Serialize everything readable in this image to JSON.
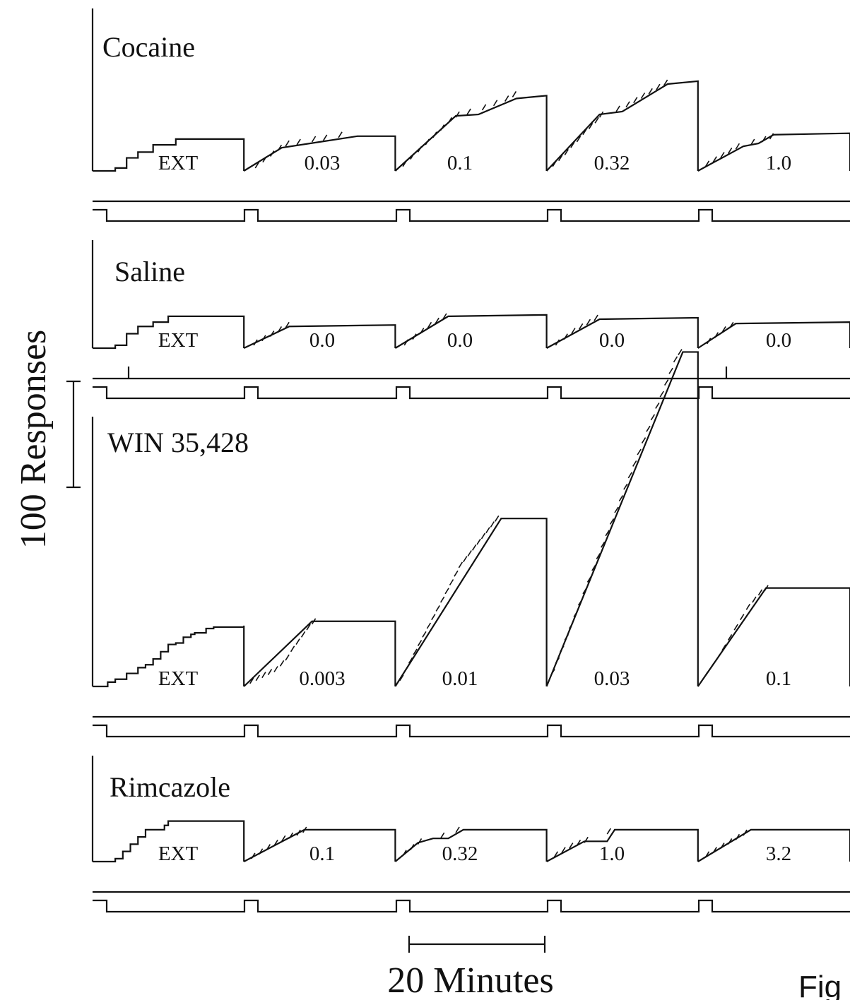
{
  "figure_label": "Fig",
  "scale_bars": {
    "y": "100 Responses",
    "x": "20 Minutes"
  },
  "panels": [
    {
      "title": "Cocaine",
      "segments": [
        {
          "label": "EXT",
          "start": 0,
          "steps": [
            [
              6,
              2
            ],
            [
              9,
              9
            ],
            [
              12,
              13
            ],
            [
              16,
              18
            ],
            [
              22,
              22
            ],
            [
              40,
              22
            ]
          ],
          "ticks": []
        },
        {
          "label": "0.03",
          "start": 0,
          "steps": [
            [
              5,
              16
            ],
            [
              10,
              20
            ],
            [
              15,
              24
            ],
            [
              20,
              24
            ]
          ],
          "ticks": [
            [
              1.5,
              2
            ],
            [
              2.5,
              6
            ],
            [
              3.5,
              10
            ],
            [
              4.5,
              14
            ],
            [
              5.5,
              17
            ],
            [
              7.0,
              18
            ],
            [
              9.0,
              20
            ],
            [
              10.5,
              21
            ],
            [
              12.5,
              23
            ]
          ]
        },
        {
          "label": "0.1",
          "start": 0,
          "steps": [
            [
              8,
              38
            ],
            [
              11,
              39
            ],
            [
              16,
              50
            ],
            [
              20,
              52
            ]
          ],
          "ticks": [
            [
              1,
              3
            ],
            [
              2,
              8
            ],
            [
              3,
              13
            ],
            [
              4,
              18
            ],
            [
              5,
              23
            ],
            [
              6,
              28
            ],
            [
              7,
              33
            ],
            [
              8,
              37
            ],
            [
              9.5,
              39
            ],
            [
              11.5,
              42
            ],
            [
              13,
              45
            ],
            [
              14.5,
              48
            ],
            [
              15.5,
              51
            ]
          ]
        },
        {
          "label": "0.32",
          "start": 0,
          "steps": [
            [
              7,
              39
            ],
            [
              10,
              41
            ],
            [
              16,
              60
            ],
            [
              20,
              62
            ]
          ],
          "ticks": [
            [
              0.8,
              3
            ],
            [
              1.6,
              7
            ],
            [
              2.4,
              11
            ],
            [
              3.2,
              16
            ],
            [
              4.0,
              20
            ],
            [
              4.8,
              25
            ],
            [
              5.6,
              29
            ],
            [
              6.4,
              33
            ],
            [
              7.0,
              37
            ],
            [
              9.2,
              41
            ],
            [
              10.5,
              44
            ],
            [
              11.5,
              47
            ],
            [
              12.5,
              50
            ],
            [
              13.5,
              53
            ],
            [
              14.5,
              56
            ],
            [
              15.5,
              59
            ]
          ]
        },
        {
          "label": "1.0",
          "start": 0,
          "steps": [
            [
              6,
              17
            ],
            [
              8,
              19
            ],
            [
              10,
              25
            ],
            [
              20,
              26
            ]
          ],
          "ticks": [
            [
              1,
              3
            ],
            [
              2,
              6
            ],
            [
              3,
              9
            ],
            [
              4,
              12
            ],
            [
              5,
              15
            ],
            [
              7,
              18
            ],
            [
              8.5,
              20
            ],
            [
              9.5,
              22
            ]
          ]
        }
      ]
    },
    {
      "title": "Saline",
      "segments": [
        {
          "label": "EXT",
          "start": 0,
          "steps": [
            [
              6,
              2
            ],
            [
              9,
              10
            ],
            [
              12,
              15
            ],
            [
              16,
              18
            ],
            [
              20,
              22
            ]
          ],
          "ticks": []
        },
        {
          "label": "0.0",
          "start": 0,
          "steps": [
            [
              6,
              15
            ],
            [
              20,
              16
            ]
          ],
          "ticks": [
            [
              1.3,
              2
            ],
            [
              2.4,
              5
            ],
            [
              3.5,
              8
            ],
            [
              4.5,
              11
            ],
            [
              5.5,
              14
            ]
          ]
        },
        {
          "label": "0.0",
          "start": 0,
          "steps": [
            [
              7,
              22
            ],
            [
              20,
              23
            ]
          ],
          "ticks": [
            [
              1.2,
              2
            ],
            [
              2.3,
              6
            ],
            [
              3.3,
              10
            ],
            [
              4.3,
              14
            ],
            [
              5.3,
              17
            ],
            [
              6.3,
              20
            ]
          ]
        },
        {
          "label": "0.0",
          "start": 0,
          "steps": [
            [
              7,
              20
            ],
            [
              20,
              21
            ]
          ],
          "ticks": [
            [
              1.2,
              2
            ],
            [
              2.3,
              6
            ],
            [
              3.3,
              10
            ],
            [
              4.3,
              13
            ],
            [
              5.3,
              16
            ],
            [
              6.3,
              19
            ]
          ]
        },
        {
          "label": "0.0",
          "start": 0,
          "steps": [
            [
              5,
              17
            ],
            [
              20,
              18
            ]
          ],
          "ticks": [
            [
              1.2,
              3
            ],
            [
              2.2,
              7
            ],
            [
              3.2,
              11
            ],
            [
              4.2,
              14
            ]
          ]
        }
      ]
    },
    {
      "title": "WIN 35,428",
      "segments": [
        {
          "label": "EXT",
          "start": 0,
          "steps": [
            [
              4,
              3
            ],
            [
              6,
              5
            ],
            [
              9,
              9
            ],
            [
              12,
              13
            ],
            [
              14,
              15
            ],
            [
              16,
              19
            ],
            [
              18,
              24
            ],
            [
              20,
              29
            ],
            [
              22,
              30
            ],
            [
              24,
              34
            ],
            [
              26,
              36
            ],
            [
              27,
              37
            ],
            [
              30,
              40
            ],
            [
              32,
              41
            ],
            [
              40,
              42
            ]
          ],
          "ticks": []
        },
        {
          "label": "0.003",
          "start": 0,
          "steps": [
            [
              9,
              45
            ],
            [
              20,
              45
            ]
          ],
          "ticks": [
            [
              0.8,
              2
            ],
            [
              1.6,
              4
            ],
            [
              2.4,
              6
            ],
            [
              3.2,
              8
            ],
            [
              4.0,
              10
            ],
            [
              4.8,
              14
            ],
            [
              5.5,
              18
            ],
            [
              6.2,
              24
            ],
            [
              6.9,
              29
            ],
            [
              7.6,
              34
            ],
            [
              8.3,
              39
            ],
            [
              9.0,
              43
            ]
          ]
        },
        {
          "label": "0.01",
          "start": 0,
          "steps": [
            [
              14,
              116
            ],
            [
              20,
              116
            ]
          ],
          "ticks": [
            [
              0.6,
              4
            ],
            [
              1.2,
              10
            ],
            [
              1.8,
              16
            ],
            [
              2.4,
              22
            ],
            [
              3.0,
              28
            ],
            [
              3.6,
              34
            ],
            [
              4.2,
              40
            ],
            [
              4.8,
              46
            ],
            [
              5.4,
              52
            ],
            [
              6.0,
              58
            ],
            [
              6.6,
              64
            ],
            [
              7.2,
              70
            ],
            [
              7.8,
              76
            ],
            [
              8.4,
              82
            ],
            [
              9.0,
              86
            ],
            [
              9.6,
              90
            ],
            [
              10.2,
              94
            ],
            [
              10.8,
              98
            ],
            [
              11.4,
              102
            ],
            [
              12.0,
              106
            ],
            [
              12.6,
              110
            ],
            [
              13.2,
              114
            ]
          ]
        },
        {
          "label": "0.03",
          "start": 0,
          "steps": [
            [
              18,
              231
            ],
            [
              20,
              231
            ]
          ],
          "ticks": [
            [
              0.6,
              8
            ],
            [
              1.2,
              16
            ],
            [
              1.8,
              24
            ],
            [
              2.4,
              32
            ],
            [
              3.0,
              40
            ],
            [
              3.6,
              48
            ],
            [
              4.2,
              56
            ],
            [
              4.8,
              64
            ],
            [
              5.4,
              72
            ],
            [
              6.0,
              80
            ],
            [
              6.6,
              88
            ],
            [
              7.2,
              96
            ],
            [
              7.8,
              104
            ],
            [
              8.4,
              112
            ],
            [
              9.0,
              120
            ],
            [
              9.6,
              128
            ],
            [
              10.2,
              136
            ],
            [
              10.8,
              144
            ],
            [
              11.4,
              152
            ],
            [
              12.0,
              160
            ],
            [
              12.6,
              168
            ],
            [
              13.2,
              176
            ],
            [
              13.8,
              184
            ],
            [
              14.4,
              192
            ],
            [
              15.0,
              200
            ],
            [
              15.6,
              208
            ],
            [
              16.2,
              216
            ],
            [
              16.8,
              224
            ],
            [
              17.4,
              229
            ]
          ]
        },
        {
          "label": "0.1",
          "start": 0,
          "steps": [
            [
              9,
              68
            ],
            [
              20,
              68
            ]
          ],
          "ticks": [
            [
              0.8,
              6
            ],
            [
              1.6,
              12
            ],
            [
              2.4,
              18
            ],
            [
              3.2,
              25
            ],
            [
              4.0,
              32
            ],
            [
              4.8,
              39
            ],
            [
              5.6,
              46
            ],
            [
              6.4,
              53
            ],
            [
              7.2,
              58
            ],
            [
              8.0,
              63
            ],
            [
              8.8,
              66
            ]
          ]
        }
      ]
    },
    {
      "title": "Rimcazole",
      "segments": [
        {
          "label": "EXT",
          "start": 0,
          "steps": [
            [
              6,
              2
            ],
            [
              8,
              7
            ],
            [
              10,
              12
            ],
            [
              12,
              17
            ],
            [
              14,
              22
            ],
            [
              18,
              22
            ],
            [
              19,
              25
            ],
            [
              20,
              28
            ],
            [
              22,
              28
            ],
            [
              40,
              28
            ]
          ],
          "ticks": []
        },
        {
          "label": "0.1",
          "start": 0,
          "steps": [
            [
              8,
              22
            ],
            [
              20,
              22
            ]
          ],
          "ticks": [
            [
              1,
              2
            ],
            [
              2,
              5
            ],
            [
              3,
              8
            ],
            [
              4,
              11
            ],
            [
              5,
              14
            ],
            [
              6,
              16
            ],
            [
              7,
              18
            ],
            [
              7.8,
              20
            ]
          ]
        },
        {
          "label": "0.32",
          "start": 0,
          "steps": [
            [
              3,
              13
            ],
            [
              5,
              16
            ],
            [
              7,
              16
            ],
            [
              9,
              22
            ],
            [
              20,
              22
            ]
          ],
          "ticks": [
            [
              1,
              4
            ],
            [
              2,
              8
            ],
            [
              3,
              12
            ],
            [
              6,
              16
            ],
            [
              8,
              20
            ]
          ]
        },
        {
          "label": "1.0",
          "start": 0,
          "steps": [
            [
              5,
              14
            ],
            [
              8,
              14
            ],
            [
              9,
              22
            ],
            [
              20,
              22
            ]
          ],
          "ticks": [
            [
              1,
              3
            ],
            [
              2,
              6
            ],
            [
              3,
              9
            ],
            [
              4,
              11
            ],
            [
              5,
              13
            ],
            [
              8,
              19
            ]
          ]
        },
        {
          "label": "3.2",
          "start": 0,
          "steps": [
            [
              7,
              22
            ],
            [
              20,
              22
            ]
          ],
          "ticks": [
            [
              1,
              3
            ],
            [
              2,
              6
            ],
            [
              3,
              9
            ],
            [
              4,
              12
            ],
            [
              5,
              15
            ],
            [
              6,
              18
            ]
          ]
        }
      ]
    }
  ]
}
